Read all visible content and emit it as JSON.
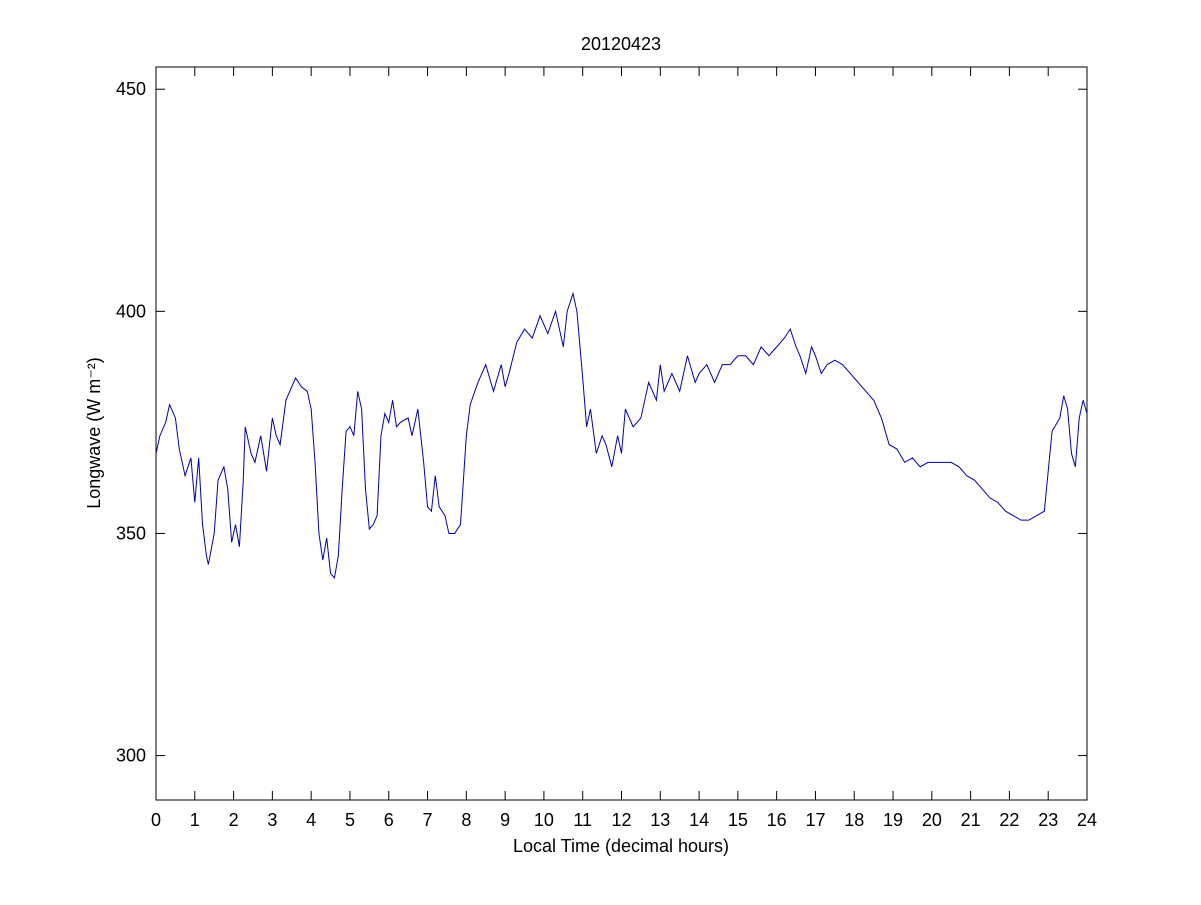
{
  "chart_data": {
    "type": "line",
    "title": "20120423",
    "x_label": "Local Time (decimal hours)",
    "y_label": "Longwave (W m⁻²)",
    "xlim": [
      0,
      24
    ],
    "xticks": [
      0,
      1,
      2,
      3,
      4,
      5,
      6,
      7,
      8,
      9,
      10,
      11,
      12,
      13,
      14,
      15,
      16,
      17,
      18,
      19,
      20,
      21,
      22,
      23,
      24
    ],
    "ylim": [
      290,
      455
    ],
    "yticks": [
      300,
      350,
      400,
      450
    ],
    "x": [
      0,
      0.1,
      0.25,
      0.35,
      0.5,
      0.6,
      0.75,
      0.9,
      1.0,
      1.1,
      1.2,
      1.3,
      1.35,
      1.5,
      1.6,
      1.75,
      1.85,
      1.95,
      2.05,
      2.15,
      2.25,
      2.3,
      2.45,
      2.55,
      2.7,
      2.85,
      3.0,
      3.1,
      3.2,
      3.35,
      3.5,
      3.6,
      3.75,
      3.9,
      4.0,
      4.1,
      4.2,
      4.3,
      4.4,
      4.5,
      4.6,
      4.7,
      4.8,
      4.9,
      5.0,
      5.1,
      5.2,
      5.3,
      5.4,
      5.5,
      5.6,
      5.7,
      5.8,
      5.9,
      6.0,
      6.1,
      6.2,
      6.3,
      6.5,
      6.6,
      6.75,
      6.9,
      7.0,
      7.1,
      7.2,
      7.3,
      7.45,
      7.55,
      7.7,
      7.85,
      8.0,
      8.1,
      8.3,
      8.5,
      8.7,
      8.9,
      9.0,
      9.1,
      9.3,
      9.5,
      9.7,
      9.9,
      10.1,
      10.3,
      10.5,
      10.6,
      10.75,
      10.85,
      11.0,
      11.1,
      11.2,
      11.35,
      11.5,
      11.6,
      11.75,
      11.9,
      12.0,
      12.1,
      12.3,
      12.5,
      12.7,
      12.9,
      13.0,
      13.1,
      13.3,
      13.5,
      13.7,
      13.9,
      14.0,
      14.2,
      14.4,
      14.6,
      14.8,
      15.0,
      15.2,
      15.4,
      15.6,
      15.8,
      16.0,
      16.2,
      16.35,
      16.5,
      16.6,
      16.75,
      16.9,
      17.0,
      17.15,
      17.3,
      17.5,
      17.7,
      17.9,
      18.1,
      18.3,
      18.5,
      18.7,
      18.9,
      19.1,
      19.3,
      19.5,
      19.7,
      19.9,
      20.1,
      20.3,
      20.5,
      20.7,
      20.9,
      21.1,
      21.3,
      21.5,
      21.7,
      21.9,
      22.1,
      22.3,
      22.5,
      22.7,
      22.9,
      23.0,
      23.1,
      23.3,
      23.4,
      23.5,
      23.6,
      23.7,
      23.8,
      23.9,
      24.0
    ],
    "series": [
      {
        "color": "#0000aa",
        "values": [
          368,
          372,
          375,
          379,
          376,
          369,
          363,
          367,
          357,
          367,
          352,
          345,
          343,
          350,
          362,
          365,
          360,
          348,
          352,
          347,
          362,
          374,
          368,
          366,
          372,
          364,
          376,
          372,
          370,
          380,
          383,
          385,
          383,
          382,
          378,
          366,
          350,
          344,
          349,
          341,
          340,
          345,
          360,
          373,
          374,
          372,
          382,
          378,
          360,
          351,
          352,
          354,
          372,
          377,
          375,
          380,
          374,
          375,
          376,
          372,
          378,
          366,
          356,
          355,
          363,
          356,
          354,
          350,
          350,
          352,
          372,
          379,
          384,
          388,
          382,
          388,
          383,
          386,
          393,
          396,
          394,
          399,
          395,
          400,
          392,
          400,
          404,
          400,
          385,
          374,
          378,
          368,
          372,
          370,
          365,
          372,
          368,
          378,
          374,
          376,
          384,
          380,
          388,
          382,
          386,
          382,
          390,
          384,
          386,
          388,
          384,
          388,
          388,
          390,
          390,
          388,
          392,
          390,
          392,
          394,
          396,
          392,
          390,
          386,
          392,
          390,
          386,
          388,
          389,
          388,
          386,
          384,
          382,
          380,
          376,
          370,
          369,
          366,
          367,
          365,
          366,
          366,
          366,
          366,
          365,
          363,
          362,
          360,
          358,
          357,
          355,
          354,
          353,
          353,
          354,
          355,
          364,
          373,
          376,
          381,
          378,
          368,
          365,
          376,
          380,
          377
        ]
      }
    ]
  }
}
